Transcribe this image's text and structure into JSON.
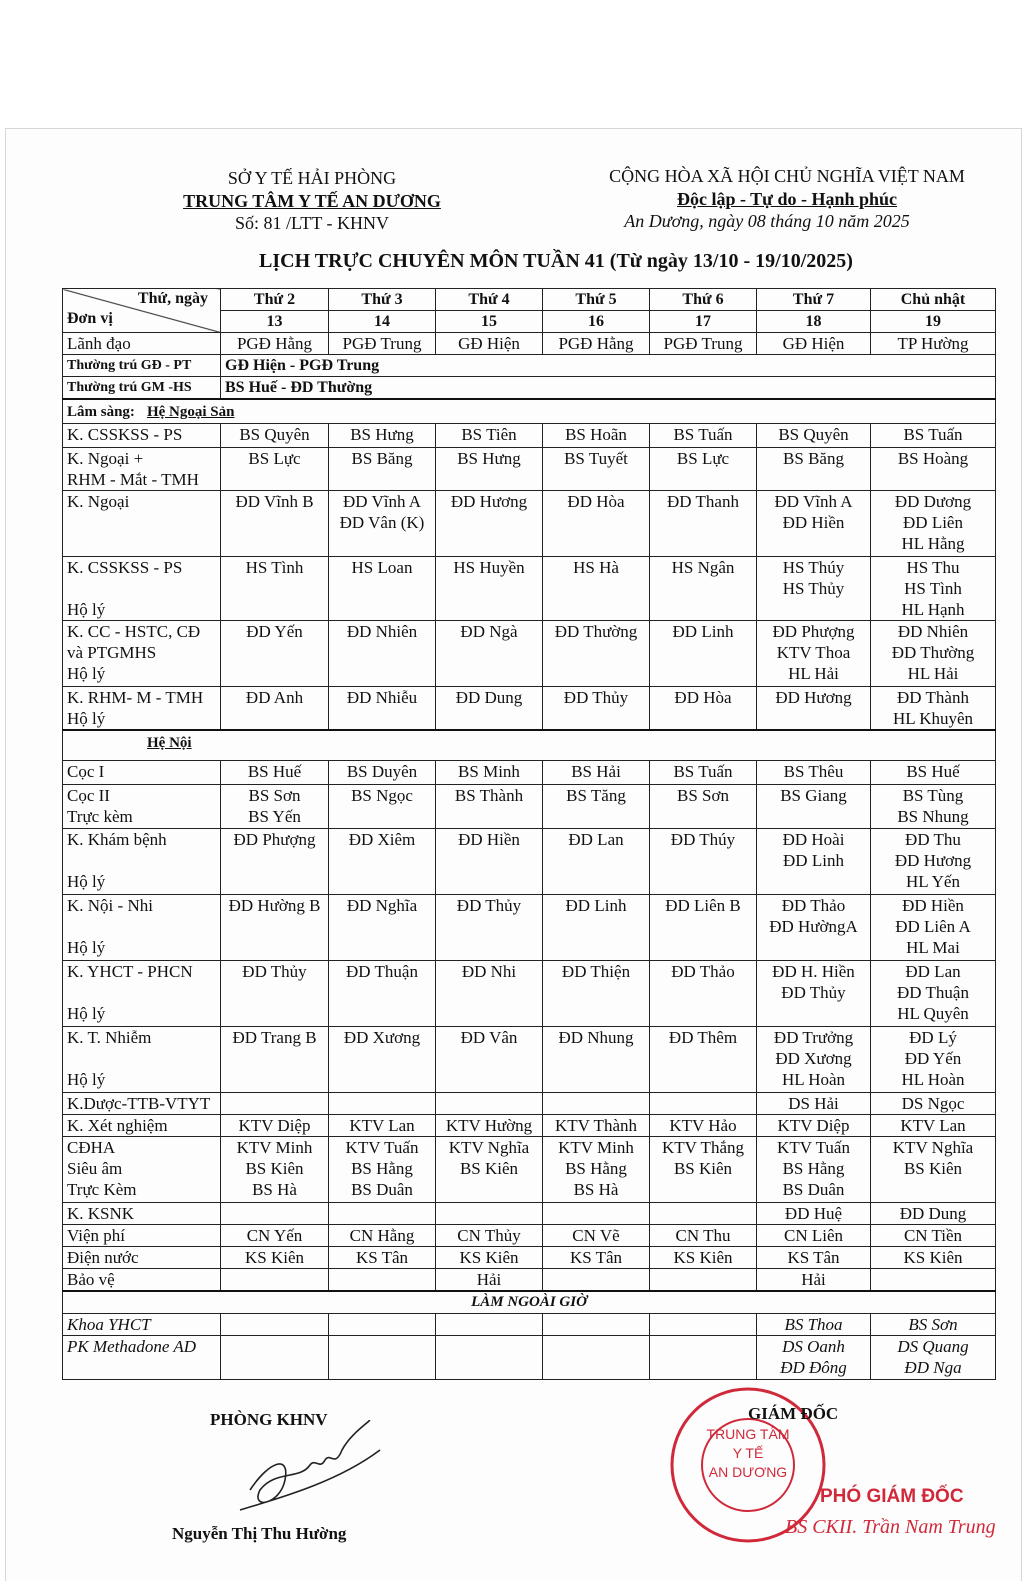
{
  "header": {
    "agency": "SỞ Y TẾ HẢI PHÒNG",
    "center": "TRUNG TÂM Y TẾ AN DƯƠNG",
    "number": "Số: 81 /LTT - KHNV",
    "country": "CỘNG HÒA XÃ HỘI CHỦ NGHĨA VIỆT NAM",
    "motto": "Độc lập - Tự do - Hạnh phúc",
    "date": "An Dương, ngày 08 tháng 10 năm 2025"
  },
  "title": "LỊCH TRỰC CHUYÊN MÔN TUẦN 41 (Từ ngày 13/10 - 19/10/2025)",
  "table": {
    "corner_top": "Thứ, ngày",
    "corner_bottom": "Đơn vị",
    "days": [
      {
        "day": "Thứ 2",
        "date": "13"
      },
      {
        "day": "Thứ 3",
        "date": "14"
      },
      {
        "day": "Thứ 4",
        "date": "15"
      },
      {
        "day": "Thứ 5",
        "date": "16"
      },
      {
        "day": "Thứ 6",
        "date": "17"
      },
      {
        "day": "Thứ 7",
        "date": "18"
      },
      {
        "day": "Chủ nhật",
        "date": "19"
      }
    ],
    "rows": [
      {
        "label": "Lãnh đạo",
        "cells": [
          "PGĐ Hằng",
          "PGĐ Trung",
          "GĐ Hiện",
          "PGĐ Hằng",
          "PGĐ Trung",
          "GĐ Hiện",
          "TP Hường"
        ]
      },
      {
        "label": "Thường trú GĐ - PT",
        "cells": [
          "GĐ Hiện - PGĐ Trung"
        ]
      },
      {
        "label": "Thường trú GM -HS",
        "cells": [
          "BS Huế - ĐD Thường"
        ]
      },
      {
        "label": "Lâm sàng:",
        "section": "Hệ Ngoại Sản"
      },
      {
        "label": "K. CSSKSS - PS",
        "cells": [
          "BS Quyên",
          "BS Hưng",
          "BS Tiên",
          "BS Hoãn",
          "BS Tuấn",
          "BS Quyên",
          "BS Tuấn"
        ]
      },
      {
        "label": "K. Ngoại +\nRHM - Mắt - TMH",
        "cells": [
          "BS Lực",
          "BS Băng",
          "BS Hưng",
          "BS Tuyết",
          "BS Lực",
          "BS Băng",
          "BS Hoàng"
        ]
      },
      {
        "label": "K. Ngoại",
        "cells": [
          "ĐD Vĩnh B",
          "ĐD Vĩnh A\nĐD Vân (K)",
          "ĐD Hương",
          "ĐD Hòa",
          "ĐD Thanh",
          "ĐD Vĩnh A\nĐD Hiền",
          "ĐD Dương\nĐD Liên\nHL Hằng"
        ]
      },
      {
        "label": "K. CSSKSS - PS\n\nHộ lý",
        "cells": [
          "HS Tình",
          "HS Loan",
          "HS Huyền",
          "HS Hà",
          "HS Ngân",
          "HS Thúy\nHS Thủy",
          "HS Thu\nHS Tình\nHL Hạnh"
        ]
      },
      {
        "label": "K. CC - HSTC, CĐ\nvà PTGMHS\nHộ lý",
        "cells": [
          "ĐD Yến",
          "ĐD Nhiên",
          "ĐD Ngà",
          "ĐD Thường",
          "ĐD Linh",
          "ĐD Phượng\nKTV Thoa\nHL Hải",
          "ĐD Nhiên\nĐD Thường\nHL Hải"
        ]
      },
      {
        "label": "K. RHM- M - TMH\nHộ lý",
        "cells": [
          "ĐD Anh",
          "ĐD Nhiễu",
          "ĐD Dung",
          "ĐD Thủy",
          "ĐD Hòa",
          "ĐD Hương",
          "ĐD Thành\nHL Khuyên"
        ]
      },
      {
        "section": "Hệ Nội"
      },
      {
        "label": "Cọc I",
        "cells": [
          "BS Huế",
          "BS Duyên",
          "BS Minh",
          "BS Hải",
          "BS Tuấn",
          "BS Thêu",
          "BS Huế"
        ]
      },
      {
        "label": "Cọc II\nTrực kèm",
        "cells": [
          "BS Sơn\nBS Yến",
          "BS Ngọc",
          "BS Thành",
          "BS Tăng",
          "BS Sơn",
          "BS Giang",
          "BS Tùng\nBS Nhung"
        ]
      },
      {
        "label": "K. Khám bệnh\n\nHộ lý",
        "cells": [
          "ĐD Phượng",
          "ĐD Xiêm",
          "ĐD Hiền",
          "ĐD Lan",
          "ĐD Thúy",
          "ĐD Hoài\nĐD Linh",
          "ĐD Thu\nĐD Hương\nHL Yến"
        ]
      },
      {
        "label": "K. Nội - Nhi\n\nHộ lý",
        "cells": [
          "ĐD Hường B",
          "ĐD Nghĩa",
          "ĐD Thủy",
          "ĐD Linh",
          "ĐD Liên B",
          "ĐD Thảo\nĐD HườngA",
          "ĐD Hiền\nĐD Liên A\nHL Mai"
        ]
      },
      {
        "label": "K. YHCT - PHCN\n\nHộ lý",
        "cells": [
          "ĐD Thủy",
          "ĐD Thuận",
          "ĐD Nhi",
          "ĐD Thiện",
          "ĐD Thảo",
          "ĐD H. Hiền\nĐD Thủy",
          "ĐD Lan\nĐD Thuận\nHL Quyên"
        ]
      },
      {
        "label": "K. T. Nhiễm\n\nHộ lý",
        "cells": [
          "ĐD Trang B",
          "ĐD Xương",
          "ĐD Vân",
          "ĐD Nhung",
          "ĐD Thêm",
          "ĐD Trưởng\nĐD Xương\nHL Hoàn",
          "ĐD Lý\nĐD Yến\nHL Hoàn"
        ]
      },
      {
        "label": "K.Dược-TTB-VTYT",
        "cells": [
          null,
          null,
          null,
          null,
          null,
          "DS Hải",
          "DS Ngọc"
        ]
      },
      {
        "label": "K. Xét nghiệm",
        "cells": [
          "KTV Diệp",
          "KTV Lan",
          "KTV Hường",
          "KTV Thành",
          "KTV Hảo",
          "KTV Diệp",
          "KTV Lan"
        ]
      },
      {
        "label": "CĐHA\nSiêu âm\nTrực Kèm",
        "cells": [
          "KTV Minh\nBS Kiên\nBS Hà",
          "KTV Tuấn\nBS Hằng\nBS Duân",
          "KTV Nghĩa\nBS Kiên",
          "KTV Minh\nBS Hằng\nBS Hà",
          "KTV Thắng\nBS Kiên",
          "KTV Tuấn\nBS Hằng\nBS Duân",
          "KTV Nghĩa\nBS Kiên"
        ]
      },
      {
        "label": "K. KSNK",
        "cells": [
          null,
          null,
          null,
          null,
          null,
          "ĐD Huệ",
          "ĐD Dung"
        ]
      },
      {
        "label": "Viện phí",
        "cells": [
          "CN Yến",
          "CN Hằng",
          "CN Thủy",
          "CN Vẽ",
          "CN Thu",
          "CN Liên",
          "CN Tiền"
        ]
      },
      {
        "label": "Điện nước",
        "cells": [
          "KS Kiên",
          "KS Tân",
          "KS Kiên",
          "KS Tân",
          "KS Kiên",
          "KS Tân",
          "KS Kiên"
        ]
      },
      {
        "label": "Bảo vệ",
        "cells": [
          null,
          null,
          "Hải",
          null,
          null,
          "Hải",
          null
        ]
      }
    ],
    "overtime": {
      "title": "LÀM NGOÀI GIỜ",
      "rows": [
        {
          "label": "Khoa YHCT",
          "cells": [
            null,
            null,
            null,
            null,
            null,
            "BS Thoa",
            "BS Sơn"
          ]
        },
        {
          "label": "PK Methadone AD",
          "cells": [
            null,
            null,
            null,
            null,
            null,
            "DS Oanh\nĐD Đông",
            "DS Quang\nĐD Nga"
          ]
        }
      ]
    }
  },
  "footer": {
    "department": "PHÒNG KHNV",
    "preparer": "Nguyễn Thị Thu Hường",
    "director": "GIÁM ĐỐC",
    "stamp": "TRUNG TÂM\nY TẾ\nAN DƯƠNG",
    "deputy": "PHÓ GIÁM ĐỐC",
    "signer": "BS CKII. Trần Nam Trung"
  }
}
